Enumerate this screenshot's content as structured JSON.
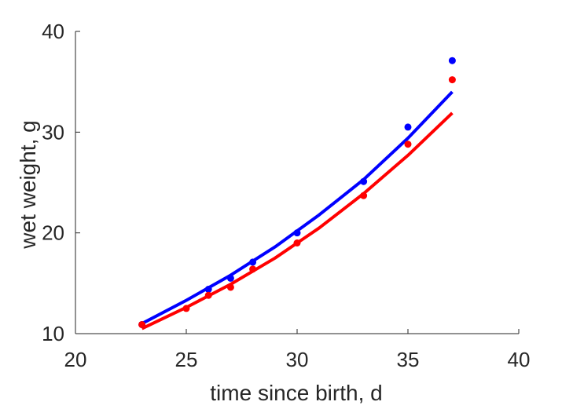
{
  "chart_data": {
    "type": "scatter",
    "title": "",
    "xlabel": "time since birth, d",
    "ylabel": "wet weight, g",
    "xlim": [
      20,
      40
    ],
    "ylim": [
      10,
      40
    ],
    "xticks": [
      20,
      25,
      30,
      35,
      40
    ],
    "yticks": [
      10,
      20,
      30,
      40
    ],
    "grid": false,
    "series": [
      {
        "color": "#0000ff",
        "kind": "points",
        "x": [
          23,
          26,
          27,
          28,
          30,
          33,
          35,
          37
        ],
        "y": [
          10.9,
          14.4,
          15.5,
          17.1,
          20.0,
          25.1,
          30.5,
          37.1
        ]
      },
      {
        "color": "#ff0000",
        "kind": "points",
        "x": [
          23,
          25,
          26,
          27,
          28,
          30,
          33,
          35,
          37
        ],
        "y": [
          10.9,
          12.5,
          13.8,
          14.6,
          16.4,
          19.0,
          23.7,
          28.8,
          35.2
        ]
      },
      {
        "color": "#0000ff",
        "kind": "line",
        "x": [
          23,
          25,
          27,
          29,
          31,
          33,
          35,
          37
        ],
        "y": [
          11.0,
          13.3,
          15.8,
          18.6,
          21.8,
          25.3,
          29.4,
          34.0
        ]
      },
      {
        "color": "#ff0000",
        "kind": "line",
        "x": [
          23,
          25,
          27,
          29,
          31,
          33,
          35,
          37
        ],
        "y": [
          10.5,
          12.6,
          14.9,
          17.5,
          20.5,
          23.9,
          27.7,
          31.9
        ]
      }
    ]
  }
}
